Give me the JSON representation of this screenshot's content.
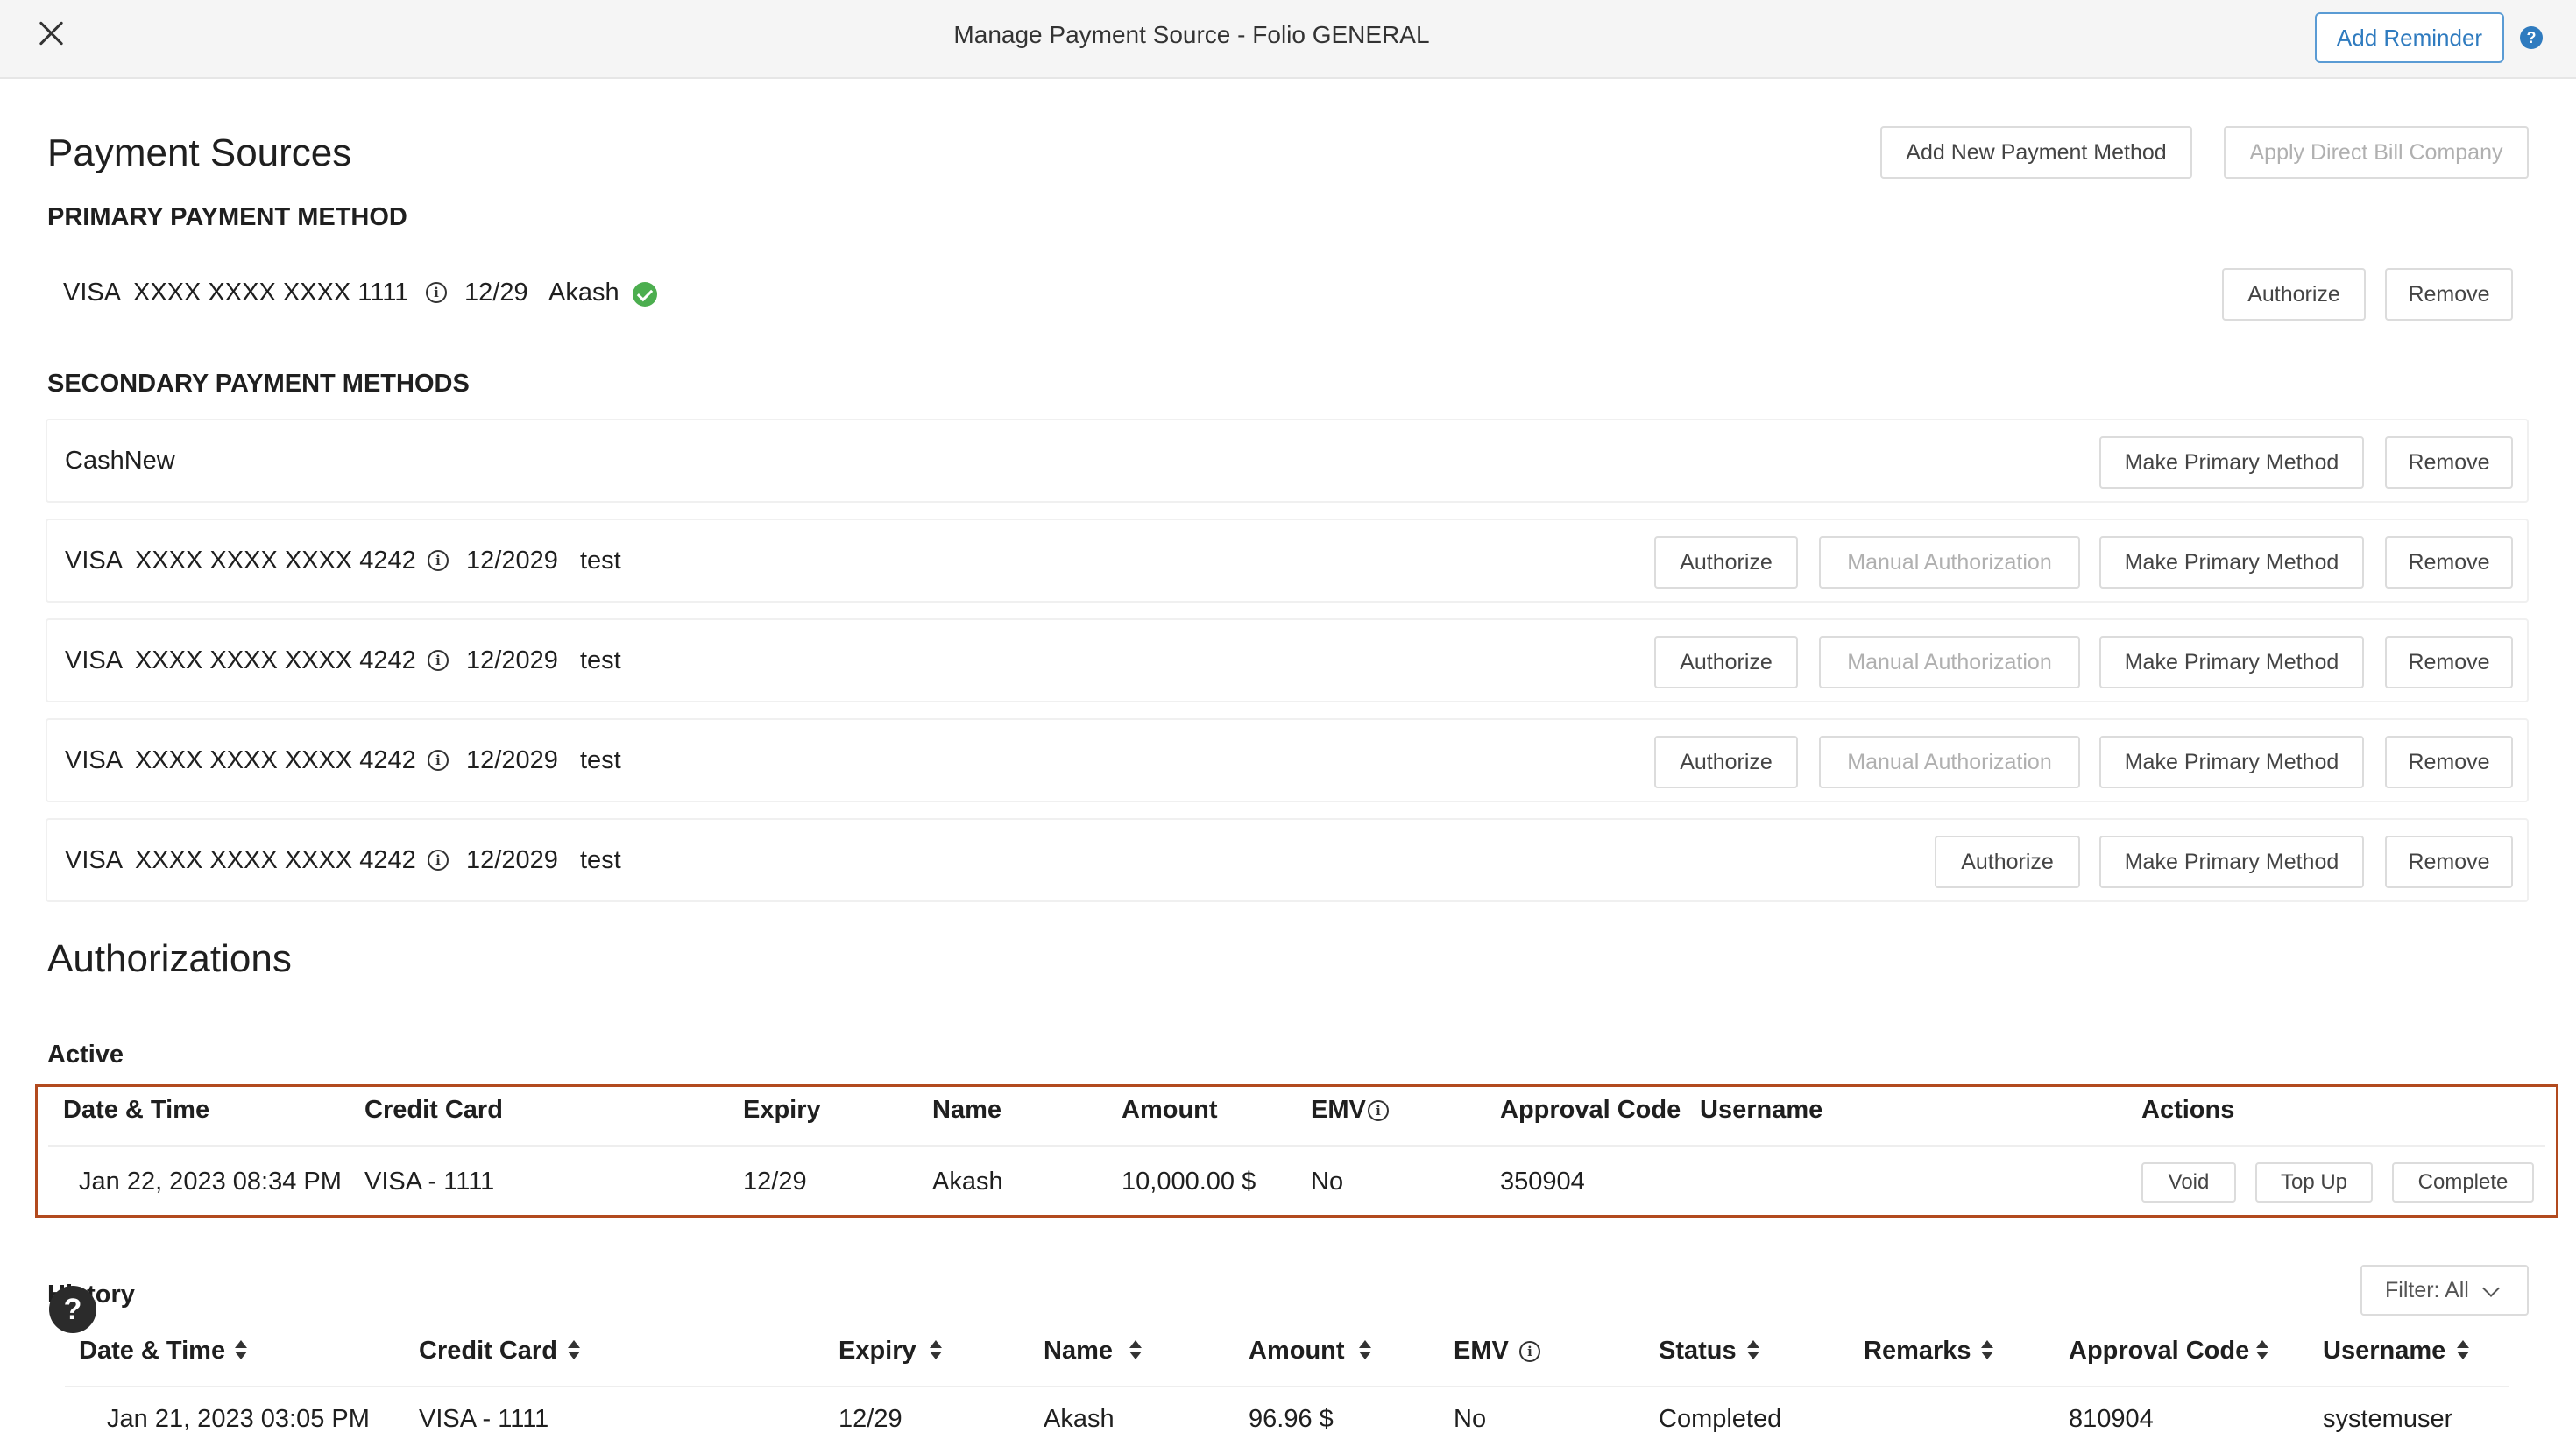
{
  "header": {
    "title": "Manage Payment Source - Folio GENERAL",
    "add_reminder": "Add Reminder",
    "help": "?"
  },
  "payment_sources": {
    "title": "Payment Sources",
    "add_new": "Add New Payment Method",
    "apply_direct_bill": "Apply Direct Bill Company",
    "primary_heading": "PRIMARY PAYMENT METHOD",
    "primary": {
      "brand": "VISA",
      "number": "XXXX XXXX XXXX 1111",
      "expiry": "12/29",
      "name": "Akash",
      "authorize": "Authorize",
      "remove": "Remove"
    },
    "secondary_heading": "SECONDARY PAYMENT METHODS",
    "secondary": [
      {
        "label": "CashNew",
        "make_primary": "Make Primary Method",
        "remove": "Remove"
      },
      {
        "brand": "VISA",
        "number": "XXXX XXXX XXXX 4242",
        "expiry": "12/2029",
        "name": "test",
        "authorize": "Authorize",
        "manual": "Manual Authorization",
        "make_primary": "Make Primary Method",
        "remove": "Remove"
      },
      {
        "brand": "VISA",
        "number": "XXXX XXXX XXXX 4242",
        "expiry": "12/2029",
        "name": "test",
        "authorize": "Authorize",
        "manual": "Manual Authorization",
        "make_primary": "Make Primary Method",
        "remove": "Remove"
      },
      {
        "brand": "VISA",
        "number": "XXXX XXXX XXXX 4242",
        "expiry": "12/2029",
        "name": "test",
        "authorize": "Authorize",
        "manual": "Manual Authorization",
        "make_primary": "Make Primary Method",
        "remove": "Remove"
      },
      {
        "brand": "VISA",
        "number": "XXXX XXXX XXXX 4242",
        "expiry": "12/2029",
        "name": "test",
        "authorize": "Authorize",
        "make_primary": "Make Primary Method",
        "remove": "Remove"
      }
    ]
  },
  "authorizations": {
    "title": "Authorizations",
    "active_heading": "Active",
    "active_columns": [
      "Date & Time",
      "Credit Card",
      "Expiry",
      "Name",
      "Amount",
      "EMV",
      "Approval Code",
      "Username",
      "Actions"
    ],
    "active_row": {
      "datetime": "Jan 22, 2023 08:34 PM",
      "card": "VISA - 1111",
      "expiry": "12/29",
      "name": "Akash",
      "amount": "10,000.00 $",
      "emv": "No",
      "approval": "350904",
      "username": "",
      "void": "Void",
      "top_up": "Top Up",
      "complete": "Complete"
    },
    "history_heading": "History",
    "filter": "Filter: All",
    "history_columns": [
      "Date & Time",
      "Credit Card",
      "Expiry",
      "Name",
      "Amount",
      "EMV",
      "Status",
      "Remarks",
      "Approval Code",
      "Username"
    ],
    "history_row": {
      "datetime": "Jan 21, 2023 03:05 PM",
      "card": "VISA - 1111",
      "expiry": "12/29",
      "name": "Akash",
      "amount": "96.96 $",
      "emv": "No",
      "status": "Completed",
      "remarks": "",
      "approval": "810904",
      "username": "systemuser"
    }
  },
  "floating_help": "?"
}
